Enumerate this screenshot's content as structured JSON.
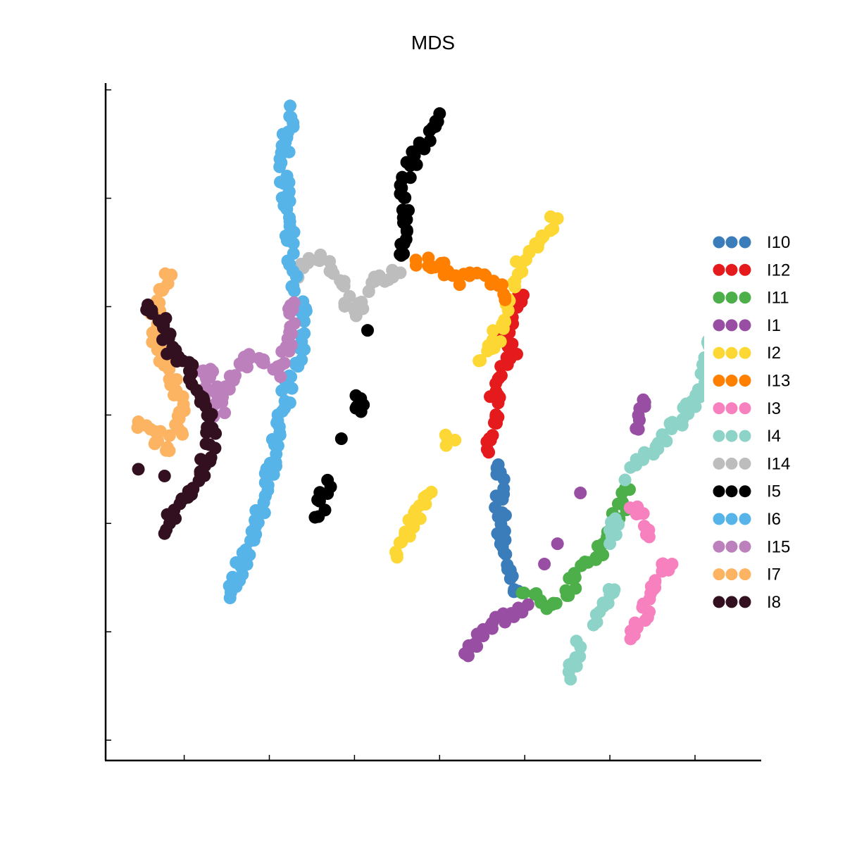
{
  "chart_data": {
    "type": "scatter",
    "title": "MDS",
    "xlabel": "",
    "ylabel": "",
    "xlim": [
      0,
      100
    ],
    "ylim": [
      0,
      100
    ],
    "x_ticks": [
      12,
      25,
      38,
      51,
      64,
      77,
      90
    ],
    "y_ticks": [
      3,
      19,
      35,
      51,
      67,
      83,
      99
    ],
    "tick_labels_shown": false,
    "grid": false,
    "legend_placement": "right",
    "series": [
      {
        "name": "I10",
        "color": "#3a7dba",
        "paths": [
          [
            [
              59.5,
              43.5
            ],
            [
              60.5,
              41
            ],
            [
              60,
              38
            ],
            [
              60.5,
              35
            ],
            [
              60.2,
              32
            ],
            [
              61,
              29.5
            ],
            [
              62,
              27
            ],
            [
              63,
              25
            ]
          ]
        ]
      },
      {
        "name": "I12",
        "color": "#e41a1c",
        "paths": [
          [
            [
              63.5,
              69.5
            ],
            [
              62.5,
              66
            ],
            [
              61,
              63
            ],
            [
              62,
              60
            ],
            [
              61,
              57.5
            ],
            [
              59.5,
              54
            ],
            [
              60,
              51
            ],
            [
              58.5,
              48
            ],
            [
              58.5,
              45.5
            ]
          ]
        ]
      },
      {
        "name": "I11",
        "color": "#4daf4a",
        "paths": [
          [
            [
              64,
              25
            ],
            [
              67,
              23
            ],
            [
              70,
              24
            ],
            [
              72.5,
              28
            ],
            [
              75,
              30
            ],
            [
              77.5,
              35.5
            ],
            [
              80,
              40
            ]
          ]
        ]
      },
      {
        "name": "I1",
        "color": "#984ea3",
        "paths": [
          [
            [
              54.5,
              15
            ],
            [
              57,
              18
            ],
            [
              60,
              20.5
            ],
            [
              62.5,
              22
            ],
            [
              64.5,
              23
            ]
          ],
          [
            [
              82.5,
              53.5
            ],
            [
              82,
              51
            ],
            [
              81,
              49
            ]
          ],
          [
            [
              72.5,
              39.5
            ]
          ],
          [
            [
              69,
              32
            ]
          ],
          [
            [
              67,
              29
            ]
          ]
        ]
      },
      {
        "name": "I2",
        "color": "#fdd835",
        "paths": [
          [
            [
              62,
              70
            ],
            [
              64,
              74
            ],
            [
              66.5,
              77
            ],
            [
              69,
              80
            ]
          ],
          [
            [
              61,
              68
            ],
            [
              60.5,
              65
            ],
            [
              59.5,
              62
            ],
            [
              57,
              59
            ]
          ],
          [
            [
              53,
              48
            ],
            [
              52,
              46.5
            ]
          ],
          [
            [
              49.5,
              40
            ],
            [
              48,
              37.5
            ],
            [
              46.5,
              34
            ],
            [
              44.5,
              30
            ]
          ]
        ]
      },
      {
        "name": "I13",
        "color": "#ff7f00",
        "paths": [
          [
            [
              47.5,
              74
            ],
            [
              51,
              73
            ],
            [
              54,
              71
            ],
            [
              57,
              72
            ],
            [
              59.5,
              70
            ],
            [
              61,
              68
            ]
          ]
        ]
      },
      {
        "name": "I3",
        "color": "#f781bf",
        "paths": [
          [
            [
              80.5,
              18
            ],
            [
              82,
              21
            ],
            [
              83,
              25
            ],
            [
              84.5,
              28.5
            ],
            [
              86.5,
              29
            ]
          ],
          [
            [
              80.5,
              38
            ],
            [
              82,
              36
            ],
            [
              83,
              33
            ]
          ]
        ]
      },
      {
        "name": "I4",
        "color": "#8dd3c7",
        "paths": [
          [
            [
              80,
              42
            ],
            [
              83,
              45.5
            ],
            [
              85.5,
              48
            ],
            [
              88,
              50.5
            ],
            [
              91,
              55
            ],
            [
              92,
              62
            ]
          ],
          [
            [
              78,
              35.5
            ],
            [
              77,
              32
            ]
          ],
          [
            [
              77,
              26
            ],
            [
              76,
              23
            ],
            [
              74.5,
              20
            ]
          ],
          [
            [
              72,
              17
            ],
            [
              71,
              12
            ]
          ]
        ]
      },
      {
        "name": "I14",
        "color": "#bdbdbd",
        "paths": [
          [
            [
              29,
              72
            ],
            [
              32,
              74.5
            ],
            [
              35,
              72
            ],
            [
              38,
              66
            ],
            [
              40,
              70
            ],
            [
              42,
              71.5
            ],
            [
              45,
              72
            ]
          ]
        ]
      },
      {
        "name": "I5",
        "color": "#000000",
        "paths": [
          [
            [
              45.5,
              74
            ],
            [
              46,
              78
            ],
            [
              45.5,
              83
            ],
            [
              46.5,
              88
            ],
            [
              49,
              92
            ],
            [
              51,
              95.5
            ]
          ],
          [
            [
              40,
              63.5
            ]
          ],
          [
            [
              39,
              54.5
            ],
            [
              39,
              51.5
            ]
          ],
          [
            [
              36,
              47.5
            ]
          ],
          [
            [
              34,
              41
            ],
            [
              33,
              38
            ],
            [
              32.5,
              36
            ]
          ]
        ]
      },
      {
        "name": "I6",
        "color": "#56b4e9",
        "paths": [
          [
            [
              28.5,
              96
            ],
            [
              27.5,
              92
            ],
            [
              27,
              88
            ],
            [
              27.5,
              83
            ],
            [
              28,
              79
            ],
            [
              28.5,
              75
            ],
            [
              29,
              70
            ],
            [
              30,
              65
            ],
            [
              29.5,
              60
            ],
            [
              28,
              56
            ],
            [
              26.5,
              49
            ],
            [
              25.5,
              43.5
            ],
            [
              24,
              38
            ],
            [
              22,
              32
            ],
            [
              20,
              27
            ],
            [
              19,
              24
            ]
          ]
        ]
      },
      {
        "name": "I15",
        "color": "#bc80bd",
        "paths": [
          [
            [
              28.5,
              68
            ],
            [
              29,
              64
            ],
            [
              27.5,
              60.5
            ],
            [
              26,
              57
            ],
            [
              22.5,
              60
            ],
            [
              20,
              58
            ],
            [
              18.5,
              55.5
            ],
            [
              17.5,
              52
            ],
            [
              15.5,
              58
            ],
            [
              15,
              55
            ],
            [
              16.5,
              51
            ]
          ]
        ]
      },
      {
        "name": "I7",
        "color": "#fdb462",
        "paths": [
          [
            [
              9.5,
              72
            ],
            [
              8,
              67
            ],
            [
              7,
              63
            ],
            [
              9,
              58.5
            ],
            [
              10.5,
              55
            ],
            [
              12,
              51
            ],
            [
              11,
              48
            ],
            [
              9,
              46
            ],
            [
              7,
              49
            ],
            [
              5,
              50
            ]
          ]
        ]
      },
      {
        "name": "I8",
        "color": "#33101f",
        "paths": [
          [
            [
              6.5,
              67.5
            ],
            [
              9,
              64
            ],
            [
              10,
              60
            ],
            [
              12.5,
              58
            ],
            [
              14,
              55
            ],
            [
              16,
              51
            ],
            [
              16,
              46
            ],
            [
              14,
              42
            ],
            [
              12,
              39
            ],
            [
              10,
              36
            ],
            [
              9,
              33.5
            ]
          ],
          [
            [
              5,
              43
            ]
          ],
          [
            [
              9,
              42
            ]
          ]
        ]
      }
    ]
  }
}
